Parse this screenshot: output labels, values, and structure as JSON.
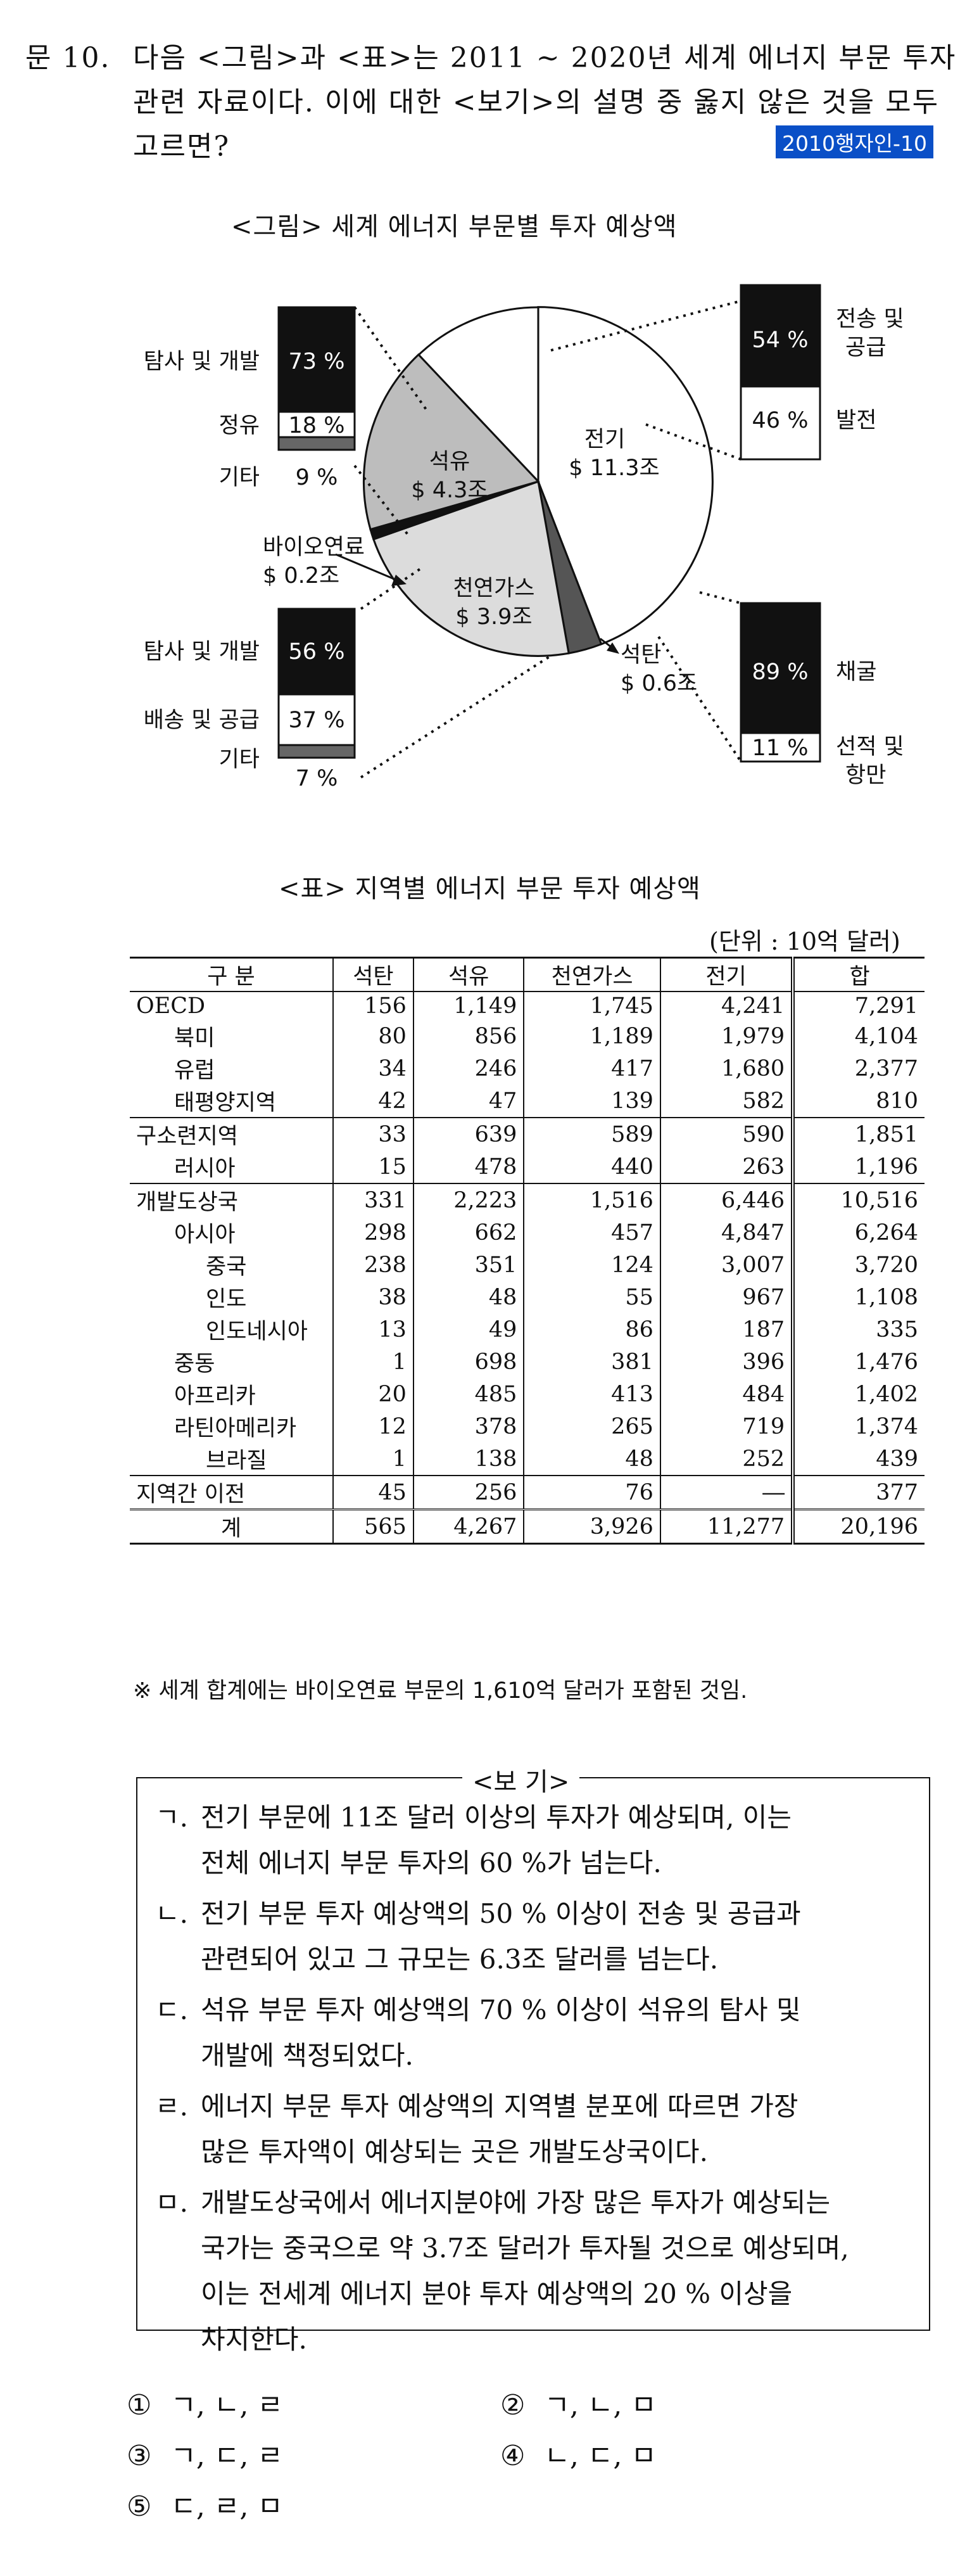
{
  "question": {
    "number": "문 10.",
    "line1": "다음 <그림>과 <표>는 2011 ~ 2020년 세계 에너지 부문 투자",
    "line2": "관련 자료이다. 이에 대한 <보기>의 설명 중 옳지 않은 것을 모두",
    "line3": "고르면?",
    "tag": "2010행자인-10"
  },
  "figure": {
    "caption": "<그림> 세계 에너지 부문별 투자 예상액",
    "pie": [
      {
        "label": "전기",
        "value_label": "$ 11.3조",
        "value": 11.3,
        "color": "#ffffff"
      },
      {
        "label": "석탄",
        "value_label": "$ 0.6조",
        "value": 0.6,
        "color": "#555555"
      },
      {
        "label": "천연가스",
        "value_label": "$ 3.9조",
        "value": 3.9,
        "color": "#dcdcdc"
      },
      {
        "label": "바이오연료",
        "value_label": "$ 0.2조",
        "value": 0.2,
        "color": "#111111"
      },
      {
        "label": "석유",
        "value_label": "$ 4.3조",
        "value": 4.3,
        "color": "#bdbdbd"
      }
    ],
    "breakdowns": {
      "oil": {
        "items": [
          {
            "label": "탐사 및 개발",
            "value": "73 %",
            "share": 73
          },
          {
            "label": "정유",
            "value": "18 %",
            "share": 18
          },
          {
            "label": "기타",
            "value": "9 %",
            "share": 9
          }
        ]
      },
      "gas": {
        "items": [
          {
            "label": "탐사 및 개발",
            "value": "56 %",
            "share": 56
          },
          {
            "label": "배송 및 공급",
            "value": "37 %",
            "share": 37
          },
          {
            "label": "기타",
            "value": "7 %",
            "share": 7
          }
        ]
      },
      "elec": {
        "items": [
          {
            "label": "전송 및 공급",
            "value": "54 %",
            "share": 54
          },
          {
            "label": "발전",
            "value": "46 %",
            "share": 46
          }
        ]
      },
      "coal": {
        "items": [
          {
            "label": "채굴",
            "value": "89 %",
            "share": 89
          },
          {
            "label": "선적 및 항만",
            "value": "11 %",
            "share": 11
          }
        ]
      }
    }
  },
  "table": {
    "caption": "<표> 지역별 에너지 부문 투자 예상액",
    "unit": "(단위 : 10억 달러)",
    "headers": [
      "구 분",
      "석탄",
      "석유",
      "천연가스",
      "전기",
      "합"
    ],
    "rows": [
      {
        "name": "OECD",
        "level": 0,
        "values": [
          "156",
          "1,149",
          "1,745",
          "4,241",
          "7,291"
        ]
      },
      {
        "name": "북미",
        "level": 1,
        "values": [
          "80",
          "856",
          "1,189",
          "1,979",
          "4,104"
        ]
      },
      {
        "name": "유럽",
        "level": 1,
        "values": [
          "34",
          "246",
          "417",
          "1,680",
          "2,377"
        ]
      },
      {
        "name": "태평양지역",
        "level": 1,
        "values": [
          "42",
          "47",
          "139",
          "582",
          "810"
        ]
      },
      {
        "name": "구소련지역",
        "level": 0,
        "values": [
          "33",
          "639",
          "589",
          "590",
          "1,851"
        ]
      },
      {
        "name": "러시아",
        "level": 1,
        "values": [
          "15",
          "478",
          "440",
          "263",
          "1,196"
        ]
      },
      {
        "name": "개발도상국",
        "level": 0,
        "values": [
          "331",
          "2,223",
          "1,516",
          "6,446",
          "10,516"
        ]
      },
      {
        "name": "아시아",
        "level": 1,
        "values": [
          "298",
          "662",
          "457",
          "4,847",
          "6,264"
        ]
      },
      {
        "name": "중국",
        "level": 2,
        "values": [
          "238",
          "351",
          "124",
          "3,007",
          "3,720"
        ]
      },
      {
        "name": "인도",
        "level": 2,
        "values": [
          "38",
          "48",
          "55",
          "967",
          "1,108"
        ]
      },
      {
        "name": "인도네시아",
        "level": 2,
        "values": [
          "13",
          "49",
          "86",
          "187",
          "335"
        ]
      },
      {
        "name": "중동",
        "level": 1,
        "values": [
          "1",
          "698",
          "381",
          "396",
          "1,476"
        ]
      },
      {
        "name": "아프리카",
        "level": 1,
        "values": [
          "20",
          "485",
          "413",
          "484",
          "1,402"
        ]
      },
      {
        "name": "라틴아메리카",
        "level": 1,
        "values": [
          "12",
          "378",
          "265",
          "719",
          "1,374"
        ]
      },
      {
        "name": "브라질",
        "level": 2,
        "values": [
          "1",
          "138",
          "48",
          "252",
          "439"
        ]
      },
      {
        "name": "지역간 이전",
        "level": 0,
        "values": [
          "45",
          "256",
          "76",
          "―",
          "377"
        ]
      },
      {
        "name": "계",
        "level": -1,
        "values": [
          "565",
          "4,267",
          "3,926",
          "11,277",
          "20,196"
        ]
      }
    ],
    "note": "※ 세계 합계에는 바이오연료 부문의 1,610억 달러가 포함된 것임."
  },
  "bogi": {
    "title": "<보 기>",
    "items": [
      {
        "key": "ㄱ.",
        "lines": [
          "전기 부문에 11조 달러 이상의 투자가 예상되며, 이는",
          "전체 에너지 부문 투자의 60 %가 넘는다."
        ]
      },
      {
        "key": "ㄴ.",
        "lines": [
          "전기 부문 투자 예상액의 50 % 이상이 전송 및 공급과",
          "관련되어 있고 그 규모는 6.3조 달러를 넘는다."
        ]
      },
      {
        "key": "ㄷ.",
        "lines": [
          "석유 부문 투자 예상액의 70 % 이상이 석유의 탐사 및",
          "개발에 책정되었다."
        ]
      },
      {
        "key": "ㄹ.",
        "lines": [
          "에너지 부문 투자 예상액의 지역별 분포에 따르면 가장",
          "많은 투자액이 예상되는 곳은 개발도상국이다."
        ]
      },
      {
        "key": "ㅁ.",
        "lines": [
          "개발도상국에서 에너지분야에 가장 많은 투자가 예상되는",
          "국가는 중국으로 약 3.7조 달러가 투자될 것으로 예상되며,",
          "이는 전세계 에너지 분야 투자 예상액의 20 % 이상을",
          "차지한다."
        ]
      }
    ]
  },
  "options": [
    {
      "num": "①",
      "text": "ㄱ, ㄴ, ㄹ"
    },
    {
      "num": "②",
      "text": "ㄱ, ㄴ, ㅁ"
    },
    {
      "num": "③",
      "text": "ㄱ, ㄷ, ㄹ"
    },
    {
      "num": "④",
      "text": "ㄴ, ㄷ, ㅁ"
    },
    {
      "num": "⑤",
      "text": "ㄷ, ㄹ, ㅁ"
    }
  ]
}
